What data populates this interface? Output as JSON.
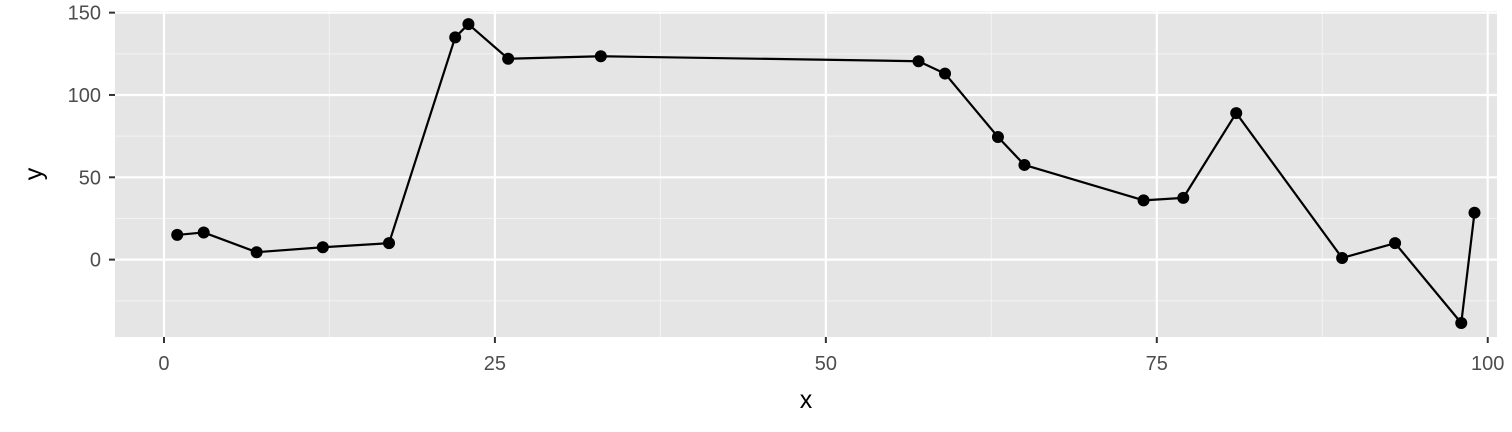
{
  "chart_data": {
    "type": "line",
    "xlabel": "x",
    "ylabel": "y",
    "xlim": [
      -3.7,
      100.7
    ],
    "ylim": [
      -47,
      151
    ],
    "x_ticks": [
      0,
      25,
      50,
      75,
      100
    ],
    "x_tick_labels": [
      "0",
      "25",
      "50",
      "75",
      "100"
    ],
    "y_ticks": [
      0,
      50,
      100,
      150
    ],
    "y_tick_labels": [
      "0",
      "50",
      "100",
      "150"
    ],
    "x_minor_breaks": [
      12.5,
      37.5,
      62.5,
      87.5
    ],
    "y_minor_breaks": [
      -25,
      25,
      75,
      125
    ],
    "grid": true,
    "legend": "none",
    "colors": {
      "panel_background": "#e5e5e5",
      "grid_major": "#ffffff",
      "grid_minor": "#f2f2f2",
      "line": "#000000",
      "points": "#000000"
    },
    "series": [
      {
        "x": [
          1,
          3,
          7,
          12,
          17,
          22,
          23,
          26,
          33,
          57,
          59,
          63,
          65,
          74,
          77,
          81,
          89,
          93,
          98,
          99
        ],
        "y": [
          15,
          16.5,
          4.5,
          7.5,
          10,
          135,
          143,
          122,
          123.5,
          120.5,
          113,
          74.5,
          57.5,
          36,
          37.5,
          89,
          1,
          10,
          -38.5,
          28.5
        ]
      }
    ]
  }
}
